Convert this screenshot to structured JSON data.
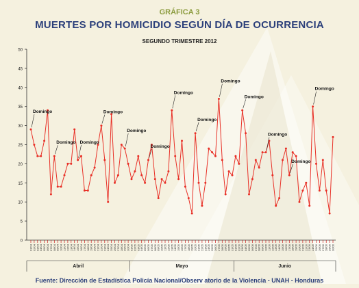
{
  "header": {
    "figure_label": "GRÁFICA 3",
    "title": "MUERTES POR HOMICIDIO SEGÚN DÍA DE OCURRENCIA",
    "subtitle": "SEGUNDO TRIMESTRE 2012"
  },
  "footer": {
    "source": "Fuente: Dirección de Estadística Policía Nacional/Observ atorio de la Violencia - UNAH - Honduras"
  },
  "colors": {
    "line": "#e82f26",
    "background": "#f5f1df",
    "axis": "#333333",
    "title": "#2b3f7a",
    "figure_label": "#8a9a3c"
  },
  "chart_data": {
    "type": "line",
    "title": "SEGUNDO TRIMESTRE 2012",
    "ylim": [
      0,
      50
    ],
    "yticks": [
      0,
      5,
      10,
      15,
      20,
      25,
      30,
      35,
      40,
      45,
      50
    ],
    "grid": false,
    "x": [
      "01/04",
      "02/04",
      "03/04",
      "04/04",
      "05/04",
      "06/04",
      "07/04",
      "08/04",
      "09/04",
      "10/04",
      "11/04",
      "12/04",
      "13/04",
      "14/04",
      "15/04",
      "16/04",
      "17/04",
      "18/04",
      "19/04",
      "20/04",
      "21/04",
      "22/04",
      "23/04",
      "24/04",
      "25/04",
      "26/04",
      "27/04",
      "28/04",
      "29/04",
      "30/04",
      "01/05",
      "02/05",
      "03/05",
      "04/05",
      "05/05",
      "06/05",
      "07/05",
      "08/05",
      "09/05",
      "10/05",
      "11/05",
      "12/05",
      "13/05",
      "14/05",
      "15/05",
      "16/05",
      "17/05",
      "18/05",
      "19/05",
      "20/05",
      "21/05",
      "22/05",
      "23/05",
      "24/05",
      "25/05",
      "26/05",
      "27/05",
      "28/05",
      "29/05",
      "30/05",
      "31/05",
      "01/06",
      "02/06",
      "03/06",
      "04/06",
      "05/06",
      "06/06",
      "07/06",
      "08/06",
      "09/06",
      "10/06",
      "11/06",
      "12/06",
      "13/06",
      "14/06",
      "15/06",
      "16/06",
      "17/06",
      "18/06",
      "19/06",
      "20/06",
      "21/06",
      "22/06",
      "23/06",
      "24/06",
      "25/06",
      "26/06",
      "27/06",
      "28/06",
      "29/06",
      "30/06"
    ],
    "series": [
      {
        "values": [
          29,
          25,
          22,
          22,
          26,
          34,
          12,
          22,
          14,
          14,
          17,
          20,
          20,
          29,
          21,
          22,
          13,
          13,
          17,
          19,
          25,
          30,
          21,
          10,
          33,
          15,
          17,
          25,
          24,
          20,
          16,
          18,
          22,
          17,
          15,
          21,
          25,
          16,
          11,
          16,
          15,
          18,
          34,
          22,
          16,
          26,
          14,
          11,
          7,
          28,
          15,
          9,
          15,
          24,
          23,
          22,
          37,
          21,
          12,
          18,
          17,
          22,
          20,
          34,
          28,
          12,
          16,
          21,
          19,
          23,
          23,
          26,
          17,
          9,
          11,
          21,
          24,
          17,
          23,
          22,
          10,
          13,
          15,
          9,
          35,
          20,
          13,
          21,
          13,
          7,
          27
        ]
      }
    ],
    "months": [
      {
        "name": "Abril",
        "days": 30
      },
      {
        "name": "Mayo",
        "days": 31
      },
      {
        "name": "Junio",
        "days": 30
      }
    ],
    "annotations": [
      {
        "text": "Domingo",
        "x_index": 0
      },
      {
        "text": "Domingo",
        "x_index": 7
      },
      {
        "text": "Domingo",
        "x_index": 14
      },
      {
        "text": "Domingo",
        "x_index": 21
      },
      {
        "text": "Domingo",
        "x_index": 28
      },
      {
        "text": "Domingo",
        "x_index": 35
      },
      {
        "text": "Domingo",
        "x_index": 42
      },
      {
        "text": "Domingo",
        "x_index": 49
      },
      {
        "text": "Domingo",
        "x_index": 56
      },
      {
        "text": "Domingo",
        "x_index": 63
      },
      {
        "text": "Domingo",
        "x_index": 70
      },
      {
        "text": "Domingo",
        "x_index": 77
      },
      {
        "text": "Domingo",
        "x_index": 84
      }
    ]
  }
}
